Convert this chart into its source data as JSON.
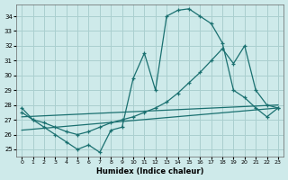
{
  "background_color": "#ceeaea",
  "grid_color": "#aacfcf",
  "line_color": "#1a7070",
  "xlabel": "Humidex (Indice chaleur)",
  "ylim": [
    24.5,
    34.8
  ],
  "xlim": [
    -0.5,
    23.5
  ],
  "yticks": [
    25,
    26,
    27,
    28,
    29,
    30,
    31,
    32,
    33,
    34
  ],
  "xticks": [
    0,
    1,
    2,
    3,
    4,
    5,
    6,
    7,
    8,
    9,
    10,
    11,
    12,
    13,
    14,
    15,
    16,
    17,
    18,
    19,
    20,
    21,
    22,
    23
  ],
  "curve1_x": [
    0,
    1,
    2,
    3,
    4,
    5,
    6,
    7,
    8,
    9,
    10,
    11,
    12,
    13,
    14,
    15,
    16,
    17,
    18,
    19,
    20,
    21,
    22,
    23
  ],
  "curve1_y": [
    27.8,
    27.0,
    26.5,
    26.0,
    25.5,
    25.0,
    25.3,
    24.8,
    26.3,
    26.5,
    29.8,
    31.5,
    29.0,
    34.0,
    34.4,
    34.5,
    34.0,
    33.5,
    32.2,
    29.0,
    28.5,
    27.8,
    27.2,
    27.8
  ],
  "curve2_x": [
    0,
    1,
    2,
    3,
    4,
    5,
    6,
    7,
    8,
    9,
    10,
    11,
    12,
    13,
    14,
    15,
    16,
    17,
    18,
    19,
    20,
    21,
    22,
    23
  ],
  "curve2_y": [
    27.5,
    27.0,
    26.8,
    26.5,
    26.2,
    26.0,
    26.2,
    26.5,
    26.8,
    27.0,
    27.2,
    27.5,
    27.8,
    28.2,
    28.8,
    29.5,
    30.2,
    31.0,
    31.8,
    30.8,
    32.0,
    29.0,
    28.0,
    27.8
  ],
  "line1_x": [
    0,
    23
  ],
  "line1_y": [
    27.2,
    28.0
  ],
  "line2_x": [
    0,
    23
  ],
  "line2_y": [
    26.3,
    27.8
  ]
}
